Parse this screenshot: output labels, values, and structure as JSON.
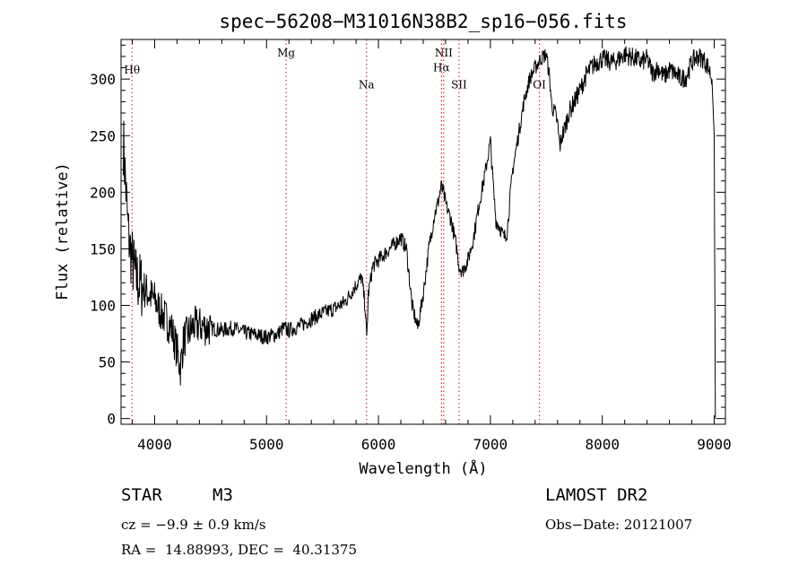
{
  "chart_data": {
    "type": "line",
    "title": "spec−56208−M31016N38B2_sp16−056.fits",
    "xlabel": "Wavelength (Å)",
    "ylabel": "Flux (relative)",
    "xlim": [
      3700,
      9100
    ],
    "ylim": [
      -5,
      335
    ],
    "xticks": [
      4000,
      5000,
      6000,
      7000,
      8000,
      9000
    ],
    "yticks": [
      0,
      50,
      100,
      150,
      200,
      250,
      300
    ],
    "grid": false,
    "line_markers": [
      {
        "label": "Hθ",
        "x": 3798,
        "label_y": 305
      },
      {
        "label": "Mg",
        "x": 5175,
        "label_y": 320
      },
      {
        "label": "Na",
        "x": 5893,
        "label_y": 292
      },
      {
        "label": "NII",
        "x": 6583,
        "label_y": 320
      },
      {
        "label": "Hα",
        "x": 6563,
        "label_y": 307
      },
      {
        "label": "SII",
        "x": 6720,
        "label_y": 292
      },
      {
        "label": "OI",
        "x": 7438,
        "label_y": 292
      }
    ],
    "spectrum": {
      "x": [
        3720,
        3740,
        3760,
        3780,
        3800,
        3830,
        3860,
        3900,
        3950,
        4000,
        4050,
        4100,
        4150,
        4200,
        4230,
        4260,
        4300,
        4350,
        4400,
        4500,
        4600,
        4700,
        4800,
        4900,
        5000,
        5100,
        5150,
        5200,
        5300,
        5400,
        5500,
        5600,
        5700,
        5800,
        5850,
        5880,
        5895,
        5910,
        5950,
        6000,
        6050,
        6100,
        6150,
        6200,
        6250,
        6300,
        6350,
        6400,
        6450,
        6500,
        6530,
        6560,
        6580,
        6600,
        6650,
        6700,
        6720,
        6750,
        6800,
        6850,
        6900,
        6950,
        7000,
        7030,
        7050,
        7080,
        7120,
        7150,
        7180,
        7200,
        7250,
        7300,
        7350,
        7400,
        7450,
        7500,
        7530,
        7550,
        7580,
        7600,
        7620,
        7640,
        7660,
        7700,
        7750,
        7800,
        7850,
        7900,
        7950,
        8000,
        8050,
        8100,
        8150,
        8200,
        8250,
        8300,
        8350,
        8400,
        8450,
        8500,
        8550,
        8600,
        8650,
        8700,
        8750,
        8800,
        8850,
        8900,
        8950,
        8980,
        9000,
        9010
      ],
      "y": [
        245,
        210,
        170,
        150,
        140,
        125,
        120,
        115,
        110,
        105,
        95,
        88,
        80,
        60,
        45,
        70,
        75,
        82,
        82,
        80,
        78,
        80,
        76,
        74,
        72,
        75,
        80,
        78,
        82,
        88,
        93,
        97,
        103,
        118,
        125,
        100,
        70,
        110,
        135,
        140,
        145,
        150,
        155,
        160,
        150,
        100,
        80,
        110,
        150,
        180,
        190,
        205,
        200,
        190,
        175,
        150,
        135,
        130,
        140,
        160,
        190,
        215,
        245,
        200,
        175,
        170,
        160,
        165,
        200,
        220,
        250,
        280,
        300,
        310,
        318,
        322,
        300,
        275,
        270,
        260,
        240,
        250,
        255,
        270,
        280,
        290,
        302,
        310,
        315,
        318,
        316,
        315,
        318,
        322,
        320,
        318,
        315,
        318,
        305,
        310,
        302,
        308,
        305,
        300,
        302,
        315,
        320,
        318,
        310,
        300,
        250,
        0
      ]
    }
  },
  "info": {
    "object_class": "STAR",
    "subclass": "M3",
    "cz": "cz = −9.9 ± 0.9 km/s",
    "coords": "RA =  14.88993, DEC =  40.31375",
    "survey": "LAMOST DR2",
    "obs_date": "Obs−Date: 20121007"
  }
}
